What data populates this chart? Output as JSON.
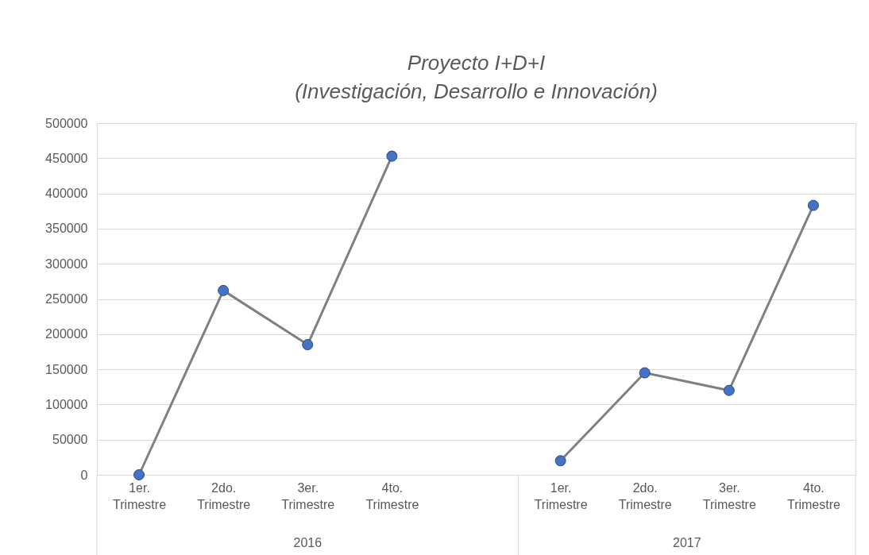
{
  "chart_data": {
    "type": "line",
    "title": "Proyecto I+D+I (Investigación, Desarrollo e Innovación)",
    "categories": [
      "1er. Trimestre",
      "2do. Trimestre",
      "3er. Trimestre",
      "4to. Trimestre",
      null,
      "1er. Trimestre",
      "2do. Trimestre",
      "3er. Trimestre",
      "4to. Trimestre"
    ],
    "series": [
      {
        "color": "#4472c4",
        "values": [
          0,
          262000,
          185000,
          453000,
          null,
          20000,
          145000,
          120000,
          383000
        ]
      }
    ],
    "annotations": [
      "2016",
      "2017"
    ],
    "ylim": [
      0,
      500000
    ],
    "yticks": [
      0,
      50000,
      100000,
      150000,
      200000,
      250000,
      300000,
      350000,
      400000,
      450000,
      500000
    ],
    "grid": "y",
    "marker": "circle",
    "line_style": "solid"
  }
}
